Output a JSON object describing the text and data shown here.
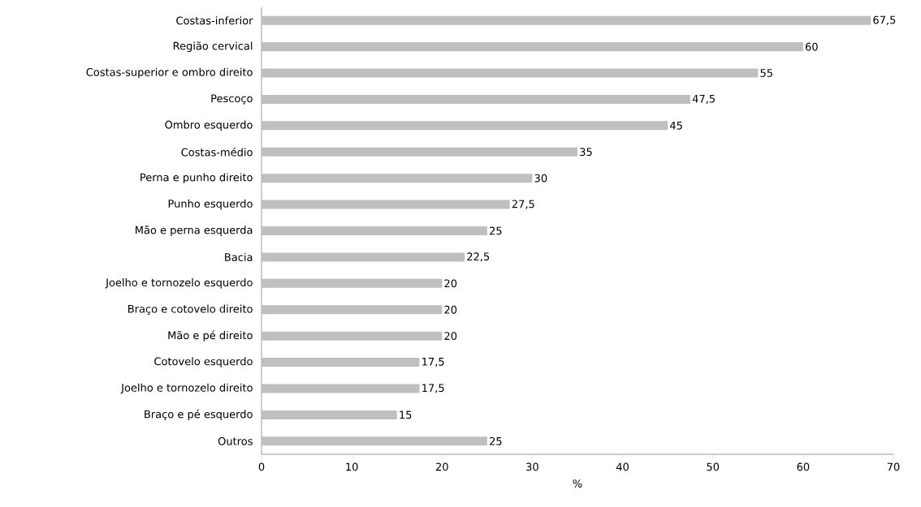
{
  "chart_data": {
    "type": "bar",
    "orientation": "horizontal",
    "xlabel": "%",
    "categories": [
      "Costas-inferior",
      "Região cervical",
      "Costas-superior e ombro direito",
      "Pescoço",
      "Ombro esquerdo",
      "Costas-médio",
      "Perna e punho direito",
      "Punho esquerdo",
      "Mão e perna esquerda",
      "Bacia",
      "Joelho e tornozelo esquerdo",
      "Braço e cotovelo direito",
      "Mão e pé direito",
      "Cotovelo esquerdo",
      "Joelho e tornozelo direito",
      "Braço e pé esquerdo",
      "Outros"
    ],
    "values": [
      67.5,
      60,
      55,
      47.5,
      45,
      35,
      30,
      27.5,
      25,
      22.5,
      20,
      20,
      20,
      17.5,
      17.5,
      15,
      25
    ],
    "value_labels": [
      "67,5",
      "60",
      "55",
      "47,5",
      "45",
      "35",
      "30",
      "27,5",
      "25",
      "22,5",
      "20",
      "20",
      "20",
      "17,5",
      "17,5",
      "15",
      "25"
    ],
    "color": "#bfbfbf",
    "xlim": [
      0,
      70
    ],
    "xticks": [
      0,
      10,
      20,
      30,
      40,
      50,
      60,
      70
    ]
  }
}
